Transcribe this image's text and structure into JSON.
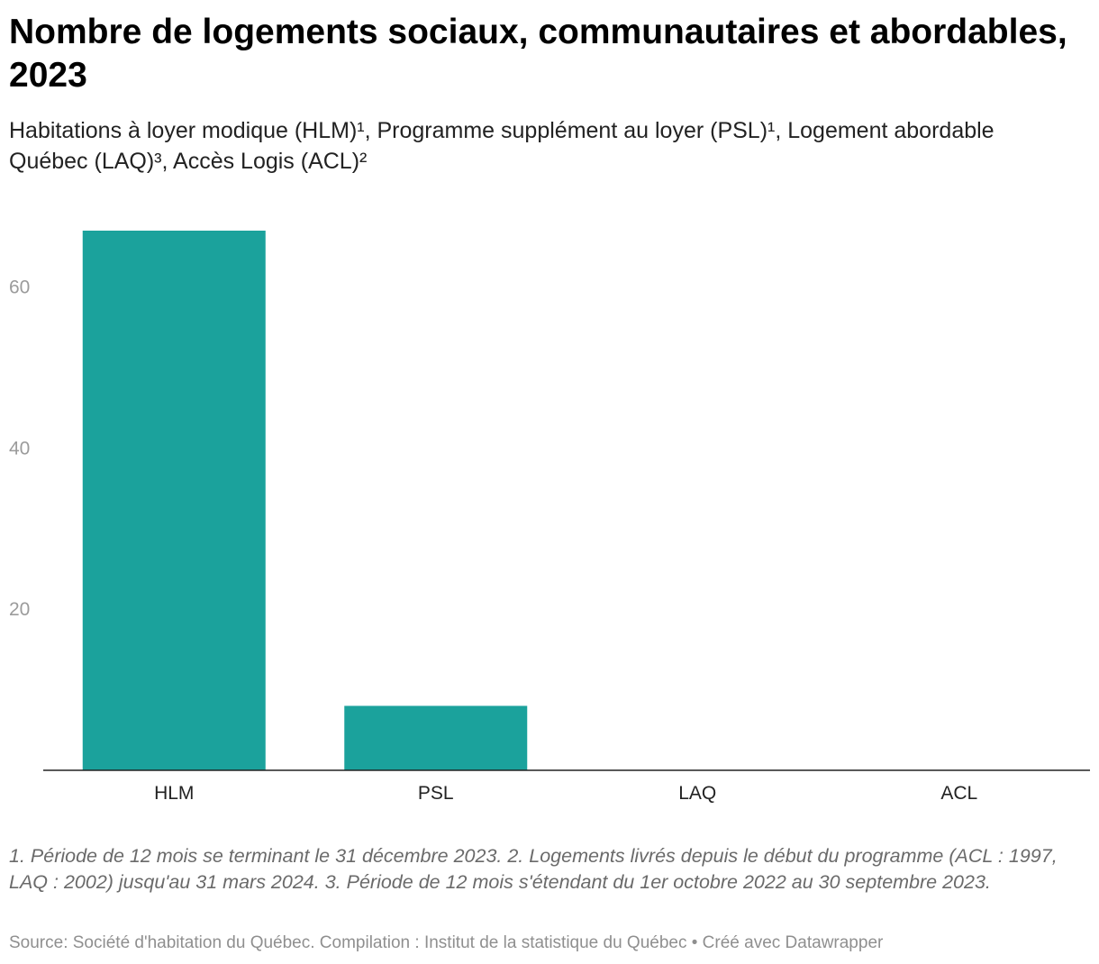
{
  "header": {
    "title": "Nombre de logements sociaux, communautaires et abordables, 2023",
    "subtitle": "Habitations à loyer modique (HLM)¹, Programme supplément au loyer (PSL)¹, Logement abordable Québec (LAQ)³, Accès Logis (ACL)²"
  },
  "chart_data": {
    "type": "bar",
    "title": "Nombre de logements sociaux, communautaires et abordables, 2023",
    "xlabel": "",
    "ylabel": "",
    "categories": [
      "HLM",
      "PSL",
      "LAQ",
      "ACL"
    ],
    "values": [
      67,
      8,
      0,
      0
    ],
    "ylim": [
      0,
      67
    ],
    "yticks": [
      20,
      40,
      60
    ],
    "bar_color": "#1ba29c",
    "grid": false
  },
  "footer": {
    "notes": "1. Période de 12 mois se terminant le 31 décembre 2023. 2. Logements livrés depuis le début du programme (ACL : 1997, LAQ : 2002) jusqu'au 31 mars 2024. 3. Période de 12 mois s'étendant du 1er octobre 2022 au 30 septembre 2023.",
    "source": "Source: Société d'habitation du Québec. Compilation : Institut de la statistique du Québec • Créé avec Datawrapper"
  }
}
